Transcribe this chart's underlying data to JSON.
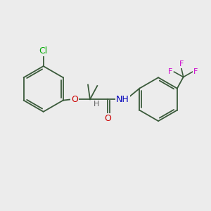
{
  "bg_color": "#ececec",
  "bond_color": "#3a5a3a",
  "bond_width": 1.3,
  "atom_colors": {
    "C": "#000000",
    "H": "#606060",
    "O": "#cc0000",
    "N": "#0000bb",
    "Cl": "#00aa00",
    "F": "#cc00cc"
  },
  "font_size": 9,
  "fig_size": [
    3.0,
    3.0
  ],
  "dpi": 100,
  "xlim": [
    0,
    10
  ],
  "ylim": [
    0,
    10
  ]
}
